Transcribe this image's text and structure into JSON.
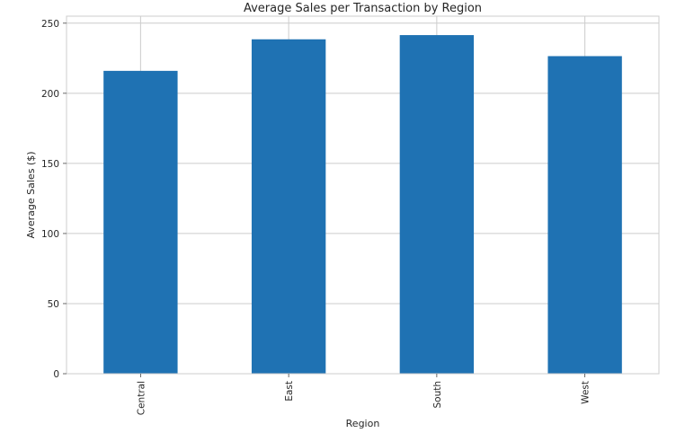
{
  "chart_data": {
    "type": "bar",
    "title": "Average Sales per Transaction by Region",
    "xlabel": "Region",
    "ylabel": "Average Sales ($)",
    "categories": [
      "Central",
      "East",
      "South",
      "West"
    ],
    "values": [
      216,
      238.5,
      241.5,
      226.5
    ],
    "ylim": [
      0,
      255
    ],
    "yticks": [
      0,
      50,
      100,
      150,
      200,
      250
    ],
    "grid": true,
    "bar_color": "#1f72b3",
    "grid_color": "#cccccc"
  }
}
